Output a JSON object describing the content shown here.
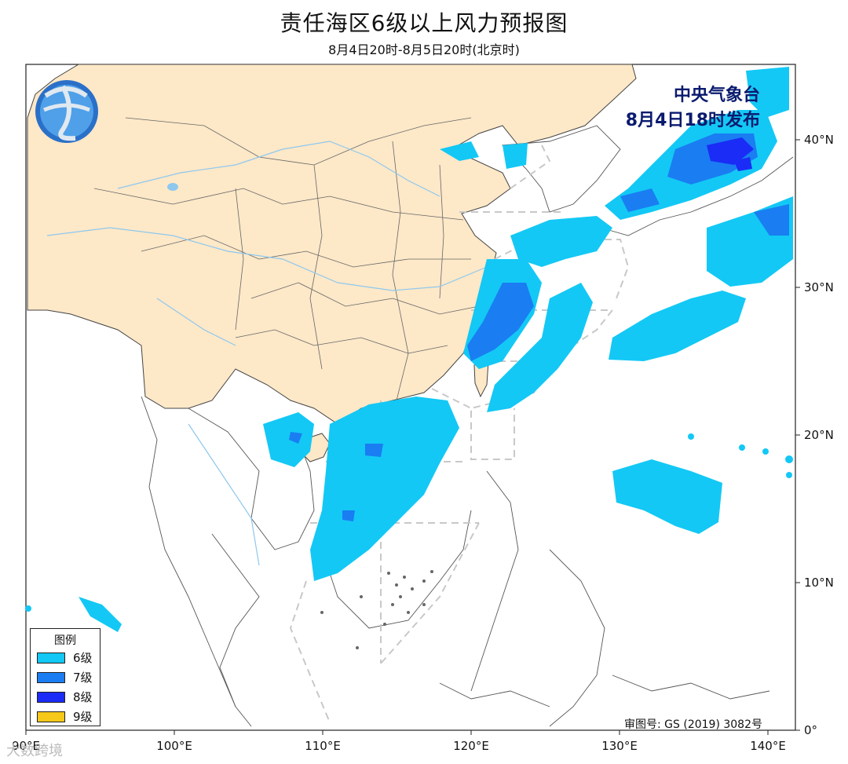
{
  "title": "责任海区6级以上风力预报图",
  "subtitle": "8月4日20时-8月5日20时(北京时)",
  "agency": {
    "name": "中央气象台",
    "issued": "8月4日18时发布"
  },
  "legend": {
    "title": "图例",
    "items": [
      {
        "label": "6级",
        "color": "#13c8f5"
      },
      {
        "label": "7级",
        "color": "#1a7df2"
      },
      {
        "label": "8级",
        "color": "#1a2cf5"
      },
      {
        "label": "9级",
        "color": "#f5c81a"
      }
    ]
  },
  "axes": {
    "x_ticks": [
      "90°E",
      "100°E",
      "110°E",
      "120°E",
      "130°E",
      "140°E"
    ],
    "y_ticks": [
      "40°N",
      "30°N",
      "20°N",
      "10°N",
      "0°"
    ]
  },
  "approval_number": "审图号: GS (2019) 3082号",
  "watermark": "大数跨境",
  "colors": {
    "land_china": "#fde8c8",
    "ocean": "#ffffff",
    "boundary": "#555555",
    "river": "#8ec8ee",
    "zone_lines": "#c8c8c8"
  }
}
